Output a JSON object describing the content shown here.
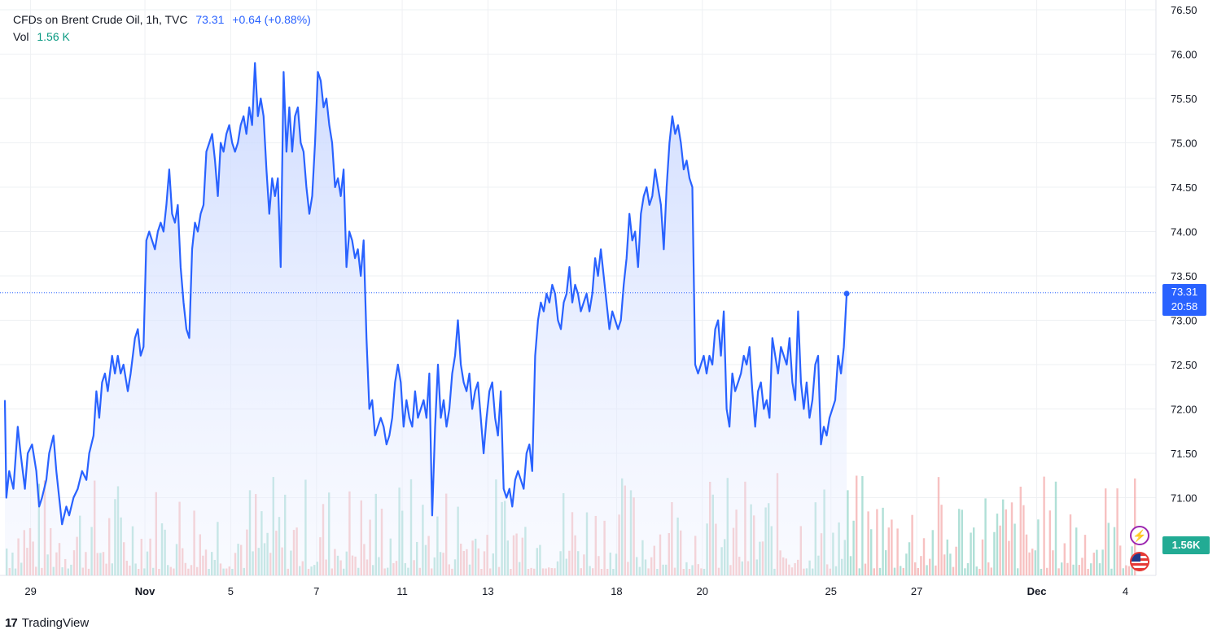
{
  "legend": {
    "symbol": "CFDs on Brent Crude Oil, 1h, TVC",
    "price": "73.31",
    "change": "+0.64 (+0.88%)",
    "vol_label": "Vol",
    "vol_value": "1.56 K"
  },
  "price_label": {
    "price": "73.31",
    "countdown": "20:58"
  },
  "vol_label_box": "1.56K",
  "brand": "TradingView",
  "icons": {
    "flash": "flash-icon",
    "flag": "us-flag-icon",
    "logo": "tradingview-logo-icon"
  },
  "colors": {
    "line": "#2962ff",
    "area": "#dde6ff",
    "vol_up": "#8fd3c6",
    "vol_down": "#f3a6a6",
    "grid": "#eef0f3"
  },
  "chart_data": {
    "type": "area",
    "title": "CFDs on Brent Crude Oil, 1h, TVC",
    "ylim": [
      70.5,
      76.5
    ],
    "y_ticks": [
      "76.50",
      "76.00",
      "75.50",
      "75.00",
      "74.50",
      "74.00",
      "73.50",
      "73.00",
      "72.50",
      "72.00",
      "71.50",
      "71.00"
    ],
    "x_ticks": [
      {
        "label": "29",
        "x": 0.9
      },
      {
        "label": "Nov",
        "x": 4.9
      },
      {
        "label": "5",
        "x": 7.9
      },
      {
        "label": "7",
        "x": 10.9
      },
      {
        "label": "11",
        "x": 13.9
      },
      {
        "label": "13",
        "x": 16.9
      },
      {
        "label": "18",
        "x": 21.4
      },
      {
        "label": "20",
        "x": 24.4
      },
      {
        "label": "25",
        "x": 28.9
      },
      {
        "label": "27",
        "x": 31.9
      },
      {
        "label": "Dec",
        "x": 36.1
      },
      {
        "label": "4",
        "x": 39.2
      }
    ],
    "x_range": [
      0,
      39.7
    ],
    "last_price": 73.31,
    "series": [
      {
        "name": "Price",
        "points": [
          [
            0,
            72.1
          ],
          [
            0.05,
            71.0
          ],
          [
            0.15,
            71.3
          ],
          [
            0.3,
            71.1
          ],
          [
            0.45,
            71.8
          ],
          [
            0.55,
            71.5
          ],
          [
            0.7,
            71.1
          ],
          [
            0.8,
            71.5
          ],
          [
            0.95,
            71.6
          ],
          [
            1.1,
            71.3
          ],
          [
            1.2,
            70.9
          ],
          [
            1.3,
            71.0
          ],
          [
            1.45,
            71.2
          ],
          [
            1.55,
            71.5
          ],
          [
            1.7,
            71.7
          ],
          [
            1.8,
            71.3
          ],
          [
            1.9,
            71.0
          ],
          [
            2.0,
            70.7
          ],
          [
            2.15,
            70.9
          ],
          [
            2.25,
            70.8
          ],
          [
            2.4,
            71.0
          ],
          [
            2.55,
            71.1
          ],
          [
            2.7,
            71.3
          ],
          [
            2.85,
            71.2
          ],
          [
            2.95,
            71.5
          ],
          [
            3.1,
            71.7
          ],
          [
            3.2,
            72.2
          ],
          [
            3.3,
            71.9
          ],
          [
            3.4,
            72.3
          ],
          [
            3.5,
            72.4
          ],
          [
            3.6,
            72.2
          ],
          [
            3.75,
            72.6
          ],
          [
            3.85,
            72.4
          ],
          [
            3.95,
            72.6
          ],
          [
            4.05,
            72.4
          ],
          [
            4.15,
            72.5
          ],
          [
            4.3,
            72.2
          ],
          [
            4.4,
            72.4
          ],
          [
            4.55,
            72.8
          ],
          [
            4.65,
            72.9
          ],
          [
            4.75,
            72.6
          ],
          [
            4.85,
            72.7
          ],
          [
            4.95,
            73.9
          ],
          [
            5.05,
            74.0
          ],
          [
            5.15,
            73.9
          ],
          [
            5.25,
            73.8
          ],
          [
            5.35,
            74.0
          ],
          [
            5.45,
            74.1
          ],
          [
            5.55,
            74.0
          ],
          [
            5.65,
            74.3
          ],
          [
            5.75,
            74.7
          ],
          [
            5.85,
            74.2
          ],
          [
            5.95,
            74.1
          ],
          [
            6.05,
            74.3
          ],
          [
            6.15,
            73.6
          ],
          [
            6.25,
            73.2
          ],
          [
            6.35,
            72.9
          ],
          [
            6.45,
            72.8
          ],
          [
            6.55,
            73.8
          ],
          [
            6.65,
            74.1
          ],
          [
            6.75,
            74.0
          ],
          [
            6.85,
            74.2
          ],
          [
            6.95,
            74.3
          ],
          [
            7.05,
            74.9
          ],
          [
            7.15,
            75.0
          ],
          [
            7.25,
            75.1
          ],
          [
            7.35,
            74.8
          ],
          [
            7.45,
            74.4
          ],
          [
            7.55,
            75.0
          ],
          [
            7.65,
            74.9
          ],
          [
            7.75,
            75.1
          ],
          [
            7.85,
            75.2
          ],
          [
            7.95,
            75.0
          ],
          [
            8.05,
            74.9
          ],
          [
            8.15,
            75.0
          ],
          [
            8.25,
            75.2
          ],
          [
            8.35,
            75.3
          ],
          [
            8.45,
            75.1
          ],
          [
            8.55,
            75.4
          ],
          [
            8.65,
            75.2
          ],
          [
            8.75,
            75.9
          ],
          [
            8.85,
            75.3
          ],
          [
            8.95,
            75.5
          ],
          [
            9.05,
            75.3
          ],
          [
            9.15,
            74.7
          ],
          [
            9.25,
            74.2
          ],
          [
            9.35,
            74.6
          ],
          [
            9.45,
            74.4
          ],
          [
            9.55,
            74.6
          ],
          [
            9.6,
            74.1
          ],
          [
            9.65,
            73.6
          ],
          [
            9.75,
            75.8
          ],
          [
            9.85,
            74.9
          ],
          [
            9.95,
            75.4
          ],
          [
            10.05,
            74.9
          ],
          [
            10.15,
            75.3
          ],
          [
            10.25,
            75.4
          ],
          [
            10.35,
            75.0
          ],
          [
            10.45,
            74.9
          ],
          [
            10.55,
            74.5
          ],
          [
            10.65,
            74.2
          ],
          [
            10.75,
            74.4
          ],
          [
            10.85,
            75.0
          ],
          [
            10.95,
            75.8
          ],
          [
            11.05,
            75.7
          ],
          [
            11.15,
            75.4
          ],
          [
            11.25,
            75.5
          ],
          [
            11.35,
            75.2
          ],
          [
            11.45,
            75.0
          ],
          [
            11.55,
            74.5
          ],
          [
            11.65,
            74.6
          ],
          [
            11.75,
            74.4
          ],
          [
            11.85,
            74.7
          ],
          [
            11.95,
            73.6
          ],
          [
            12.05,
            74.0
          ],
          [
            12.15,
            73.9
          ],
          [
            12.25,
            73.7
          ],
          [
            12.35,
            73.8
          ],
          [
            12.45,
            73.5
          ],
          [
            12.55,
            73.9
          ],
          [
            12.65,
            72.8
          ],
          [
            12.75,
            72.0
          ],
          [
            12.85,
            72.1
          ],
          [
            12.95,
            71.7
          ],
          [
            13.05,
            71.8
          ],
          [
            13.15,
            71.9
          ],
          [
            13.25,
            71.8
          ],
          [
            13.35,
            71.6
          ],
          [
            13.45,
            71.7
          ],
          [
            13.55,
            71.9
          ],
          [
            13.65,
            72.3
          ],
          [
            13.75,
            72.5
          ],
          [
            13.85,
            72.3
          ],
          [
            13.95,
            71.8
          ],
          [
            14.05,
            72.1
          ],
          [
            14.15,
            71.9
          ],
          [
            14.25,
            71.8
          ],
          [
            14.35,
            72.2
          ],
          [
            14.45,
            71.9
          ],
          [
            14.55,
            72.0
          ],
          [
            14.65,
            72.1
          ],
          [
            14.75,
            71.9
          ],
          [
            14.85,
            72.4
          ],
          [
            14.95,
            70.8
          ],
          [
            15.05,
            71.8
          ],
          [
            15.15,
            72.5
          ],
          [
            15.25,
            71.9
          ],
          [
            15.35,
            72.1
          ],
          [
            15.45,
            71.8
          ],
          [
            15.55,
            72.0
          ],
          [
            15.65,
            72.4
          ],
          [
            15.75,
            72.6
          ],
          [
            15.85,
            73.0
          ],
          [
            15.95,
            72.5
          ],
          [
            16.05,
            72.3
          ],
          [
            16.15,
            72.2
          ],
          [
            16.25,
            72.4
          ],
          [
            16.35,
            72.0
          ],
          [
            16.45,
            72.2
          ],
          [
            16.55,
            72.3
          ],
          [
            16.65,
            71.9
          ],
          [
            16.75,
            71.5
          ],
          [
            16.85,
            71.9
          ],
          [
            16.95,
            72.2
          ],
          [
            17.05,
            72.3
          ],
          [
            17.15,
            71.9
          ],
          [
            17.25,
            71.7
          ],
          [
            17.35,
            72.2
          ],
          [
            17.45,
            71.1
          ],
          [
            17.55,
            71.0
          ],
          [
            17.65,
            71.1
          ],
          [
            17.75,
            70.9
          ],
          [
            17.85,
            71.2
          ],
          [
            17.95,
            71.3
          ],
          [
            18.05,
            71.2
          ],
          [
            18.15,
            71.1
          ],
          [
            18.25,
            71.5
          ],
          [
            18.35,
            71.6
          ],
          [
            18.45,
            71.3
          ],
          [
            18.55,
            72.6
          ],
          [
            18.65,
            73.0
          ],
          [
            18.75,
            73.2
          ],
          [
            18.85,
            73.1
          ],
          [
            18.95,
            73.3
          ],
          [
            19.05,
            73.2
          ],
          [
            19.15,
            73.4
          ],
          [
            19.25,
            73.3
          ],
          [
            19.35,
            73.0
          ],
          [
            19.45,
            72.9
          ],
          [
            19.55,
            73.2
          ],
          [
            19.65,
            73.3
          ],
          [
            19.75,
            73.6
          ],
          [
            19.85,
            73.2
          ],
          [
            19.95,
            73.4
          ],
          [
            20.05,
            73.3
          ],
          [
            20.15,
            73.1
          ],
          [
            20.25,
            73.2
          ],
          [
            20.35,
            73.3
          ],
          [
            20.45,
            73.1
          ],
          [
            20.55,
            73.3
          ],
          [
            20.65,
            73.7
          ],
          [
            20.75,
            73.5
          ],
          [
            20.85,
            73.8
          ],
          [
            20.95,
            73.5
          ],
          [
            21.05,
            73.2
          ],
          [
            21.15,
            72.9
          ],
          [
            21.25,
            73.1
          ],
          [
            21.35,
            73.0
          ],
          [
            21.45,
            72.9
          ],
          [
            21.55,
            73.0
          ],
          [
            21.65,
            73.4
          ],
          [
            21.75,
            73.7
          ],
          [
            21.85,
            74.2
          ],
          [
            21.95,
            73.9
          ],
          [
            22.05,
            74.0
          ],
          [
            22.15,
            73.6
          ],
          [
            22.25,
            74.2
          ],
          [
            22.35,
            74.4
          ],
          [
            22.45,
            74.5
          ],
          [
            22.55,
            74.3
          ],
          [
            22.65,
            74.4
          ],
          [
            22.75,
            74.7
          ],
          [
            22.85,
            74.5
          ],
          [
            22.95,
            74.3
          ],
          [
            23.05,
            73.8
          ],
          [
            23.15,
            74.5
          ],
          [
            23.25,
            75.0
          ],
          [
            23.35,
            75.3
          ],
          [
            23.45,
            75.1
          ],
          [
            23.55,
            75.2
          ],
          [
            23.65,
            75.0
          ],
          [
            23.75,
            74.7
          ],
          [
            23.85,
            74.8
          ],
          [
            23.95,
            74.6
          ],
          [
            24.05,
            74.5
          ],
          [
            24.15,
            72.5
          ],
          [
            24.25,
            72.4
          ],
          [
            24.35,
            72.5
          ],
          [
            24.45,
            72.6
          ],
          [
            24.55,
            72.4
          ],
          [
            24.65,
            72.6
          ],
          [
            24.75,
            72.5
          ],
          [
            24.85,
            72.9
          ],
          [
            24.95,
            73.0
          ],
          [
            25.05,
            72.6
          ],
          [
            25.15,
            73.1
          ],
          [
            25.25,
            72.0
          ],
          [
            25.35,
            71.8
          ],
          [
            25.45,
            72.4
          ],
          [
            25.55,
            72.2
          ],
          [
            25.65,
            72.3
          ],
          [
            25.75,
            72.4
          ],
          [
            25.85,
            72.6
          ],
          [
            25.95,
            72.5
          ],
          [
            26.05,
            72.7
          ],
          [
            26.15,
            72.2
          ],
          [
            26.25,
            71.8
          ],
          [
            26.35,
            72.2
          ],
          [
            26.45,
            72.3
          ],
          [
            26.55,
            72.0
          ],
          [
            26.65,
            72.1
          ],
          [
            26.75,
            71.9
          ],
          [
            26.85,
            72.8
          ],
          [
            26.95,
            72.6
          ],
          [
            27.05,
            72.4
          ],
          [
            27.15,
            72.7
          ],
          [
            27.25,
            72.6
          ],
          [
            27.35,
            72.5
          ],
          [
            27.45,
            72.8
          ],
          [
            27.55,
            72.3
          ],
          [
            27.65,
            72.1
          ],
          [
            27.75,
            73.1
          ],
          [
            27.85,
            72.3
          ],
          [
            27.95,
            72.0
          ],
          [
            28.05,
            72.3
          ],
          [
            28.15,
            71.9
          ],
          [
            28.25,
            72.1
          ],
          [
            28.35,
            72.5
          ],
          [
            28.45,
            72.6
          ],
          [
            28.55,
            71.6
          ],
          [
            28.65,
            71.8
          ],
          [
            28.75,
            71.7
          ],
          [
            28.85,
            71.9
          ],
          [
            28.95,
            72.0
          ],
          [
            29.05,
            72.1
          ],
          [
            29.15,
            72.6
          ],
          [
            29.25,
            72.4
          ],
          [
            29.35,
            72.7
          ],
          [
            29.45,
            73.3
          ]
        ]
      }
    ],
    "volume_note": "Volume bars along bottom; latest volume 1.56K"
  }
}
